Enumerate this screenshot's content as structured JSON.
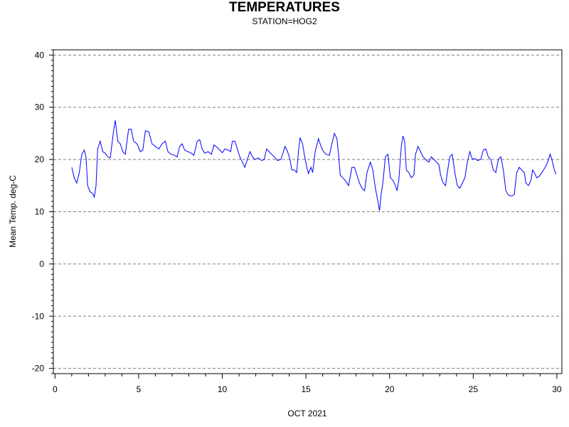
{
  "chart_data": {
    "type": "line",
    "title": "TEMPERATURES",
    "subtitle": "STATION=HOG2",
    "xlabel": "OCT 2021",
    "ylabel": "Mean Temp. deg-C",
    "xlim": [
      -0.1,
      30.3
    ],
    "ylim": [
      -21,
      41
    ],
    "x_ticks": [
      0,
      5,
      10,
      15,
      20,
      25,
      30
    ],
    "y_ticks": [
      -20,
      -10,
      0,
      10,
      20,
      30,
      40
    ],
    "grid": "horizontal dashed",
    "series": [
      {
        "color": "#0000ff",
        "points": [
          [
            1.0,
            18.5
          ],
          [
            1.15,
            16.5
          ],
          [
            1.3,
            15.5
          ],
          [
            1.45,
            17.5
          ],
          [
            1.6,
            21.0
          ],
          [
            1.75,
            21.8
          ],
          [
            1.85,
            20.5
          ],
          [
            1.95,
            15.0
          ],
          [
            2.1,
            13.8
          ],
          [
            2.25,
            13.5
          ],
          [
            2.35,
            12.8
          ],
          [
            2.45,
            15.0
          ],
          [
            2.55,
            22.0
          ],
          [
            2.7,
            23.5
          ],
          [
            2.85,
            21.5
          ],
          [
            3.0,
            21.2
          ],
          [
            3.15,
            20.5
          ],
          [
            3.3,
            20.3
          ],
          [
            3.5,
            25.5
          ],
          [
            3.6,
            27.5
          ],
          [
            3.75,
            23.5
          ],
          [
            3.9,
            23.0
          ],
          [
            4.05,
            21.5
          ],
          [
            4.2,
            21.0
          ],
          [
            4.4,
            25.8
          ],
          [
            4.55,
            25.8
          ],
          [
            4.7,
            23.5
          ],
          [
            4.9,
            23.0
          ],
          [
            5.1,
            21.5
          ],
          [
            5.25,
            21.8
          ],
          [
            5.4,
            25.5
          ],
          [
            5.6,
            25.3
          ],
          [
            5.8,
            23.0
          ],
          [
            6.0,
            22.5
          ],
          [
            6.2,
            22.0
          ],
          [
            6.4,
            23.0
          ],
          [
            6.6,
            23.5
          ],
          [
            6.75,
            21.5
          ],
          [
            6.95,
            21.0
          ],
          [
            7.15,
            20.8
          ],
          [
            7.3,
            20.5
          ],
          [
            7.45,
            22.5
          ],
          [
            7.6,
            23.0
          ],
          [
            7.75,
            21.8
          ],
          [
            7.95,
            21.5
          ],
          [
            8.15,
            21.2
          ],
          [
            8.3,
            20.8
          ],
          [
            8.5,
            23.5
          ],
          [
            8.65,
            23.8
          ],
          [
            8.8,
            22.0
          ],
          [
            8.95,
            21.2
          ],
          [
            9.15,
            21.5
          ],
          [
            9.35,
            21.0
          ],
          [
            9.5,
            22.8
          ],
          [
            9.7,
            22.3
          ],
          [
            9.85,
            21.8
          ],
          [
            10.0,
            21.3
          ],
          [
            10.15,
            22.0
          ],
          [
            10.35,
            21.8
          ],
          [
            10.5,
            21.5
          ],
          [
            10.6,
            23.5
          ],
          [
            10.75,
            23.5
          ],
          [
            10.9,
            22.0
          ],
          [
            11.05,
            20.5
          ],
          [
            11.2,
            19.5
          ],
          [
            11.35,
            18.5
          ],
          [
            11.5,
            20.0
          ],
          [
            11.65,
            21.5
          ],
          [
            11.8,
            20.5
          ],
          [
            11.95,
            20.0
          ],
          [
            12.15,
            20.3
          ],
          [
            12.35,
            19.8
          ],
          [
            12.5,
            20.0
          ],
          [
            12.65,
            22.0
          ],
          [
            12.8,
            21.5
          ],
          [
            12.95,
            21.0
          ],
          [
            13.1,
            20.5
          ],
          [
            13.3,
            19.8
          ],
          [
            13.5,
            20.0
          ],
          [
            13.65,
            21.5
          ],
          [
            13.75,
            22.5
          ],
          [
            13.9,
            21.5
          ],
          [
            14.05,
            20.0
          ],
          [
            14.15,
            18.0
          ],
          [
            14.3,
            18.0
          ],
          [
            14.45,
            17.5
          ],
          [
            14.55,
            21.5
          ],
          [
            14.65,
            24.2
          ],
          [
            14.8,
            23.0
          ],
          [
            14.9,
            21.0
          ],
          [
            15.05,
            18.5
          ],
          [
            15.15,
            17.3
          ],
          [
            15.3,
            18.5
          ],
          [
            15.4,
            17.5
          ],
          [
            15.55,
            21.5
          ],
          [
            15.75,
            24.0
          ],
          [
            15.9,
            22.5
          ],
          [
            16.05,
            21.5
          ],
          [
            16.2,
            21.0
          ],
          [
            16.4,
            20.8
          ],
          [
            16.55,
            23.0
          ],
          [
            16.7,
            25.0
          ],
          [
            16.85,
            24.0
          ],
          [
            16.95,
            21.0
          ],
          [
            17.05,
            17.0
          ],
          [
            17.2,
            16.5
          ],
          [
            17.35,
            16.0
          ],
          [
            17.55,
            15.0
          ],
          [
            17.75,
            18.5
          ],
          [
            17.9,
            18.5
          ],
          [
            18.05,
            17.0
          ],
          [
            18.2,
            15.5
          ],
          [
            18.35,
            14.5
          ],
          [
            18.5,
            14.0
          ],
          [
            18.65,
            17.5
          ],
          [
            18.85,
            19.5
          ],
          [
            19.0,
            18.0
          ],
          [
            19.15,
            14.5
          ],
          [
            19.3,
            12.0
          ],
          [
            19.4,
            10.2
          ],
          [
            19.5,
            13.5
          ],
          [
            19.6,
            15.5
          ],
          [
            19.75,
            20.5
          ],
          [
            19.9,
            21.0
          ],
          [
            20.05,
            16.5
          ],
          [
            20.2,
            16.0
          ],
          [
            20.35,
            15.0
          ],
          [
            20.45,
            14.0
          ],
          [
            20.55,
            16.0
          ],
          [
            20.7,
            22.5
          ],
          [
            20.8,
            24.5
          ],
          [
            20.9,
            23.5
          ],
          [
            21.0,
            18.0
          ],
          [
            21.15,
            17.5
          ],
          [
            21.3,
            16.5
          ],
          [
            21.45,
            17.0
          ],
          [
            21.55,
            21.0
          ],
          [
            21.7,
            22.5
          ],
          [
            21.85,
            21.5
          ],
          [
            22.0,
            20.5
          ],
          [
            22.15,
            20.0
          ],
          [
            22.35,
            19.5
          ],
          [
            22.5,
            20.5
          ],
          [
            22.65,
            20.0
          ],
          [
            22.8,
            19.5
          ],
          [
            22.95,
            19.0
          ],
          [
            23.05,
            17.0
          ],
          [
            23.2,
            15.5
          ],
          [
            23.35,
            15.0
          ],
          [
            23.45,
            17.5
          ],
          [
            23.6,
            20.5
          ],
          [
            23.75,
            21.0
          ],
          [
            23.9,
            17.5
          ],
          [
            24.05,
            15.0
          ],
          [
            24.2,
            14.5
          ],
          [
            24.35,
            15.5
          ],
          [
            24.5,
            16.5
          ],
          [
            24.65,
            19.5
          ],
          [
            24.8,
            21.5
          ],
          [
            24.95,
            20.0
          ],
          [
            25.1,
            20.2
          ],
          [
            25.25,
            19.8
          ],
          [
            25.45,
            20.0
          ],
          [
            25.6,
            21.8
          ],
          [
            25.75,
            22.0
          ],
          [
            25.9,
            20.5
          ],
          [
            26.05,
            20.0
          ],
          [
            26.2,
            18.0
          ],
          [
            26.35,
            17.5
          ],
          [
            26.5,
            20.0
          ],
          [
            26.65,
            20.5
          ],
          [
            26.8,
            18.0
          ],
          [
            26.95,
            14.0
          ],
          [
            27.1,
            13.2
          ],
          [
            27.3,
            13.0
          ],
          [
            27.45,
            13.3
          ],
          [
            27.6,
            17.5
          ],
          [
            27.75,
            18.5
          ],
          [
            27.9,
            18.0
          ],
          [
            28.05,
            17.5
          ],
          [
            28.15,
            15.5
          ],
          [
            28.3,
            15.0
          ],
          [
            28.45,
            16.0
          ],
          [
            28.55,
            18.0
          ],
          [
            28.65,
            17.5
          ],
          [
            28.8,
            16.5
          ],
          [
            28.95,
            16.8
          ],
          [
            29.1,
            17.5
          ],
          [
            29.3,
            18.5
          ],
          [
            29.45,
            19.5
          ],
          [
            29.6,
            21.0
          ],
          [
            29.7,
            20.0
          ],
          [
            29.85,
            18.0
          ],
          [
            29.95,
            17.2
          ]
        ]
      }
    ]
  }
}
